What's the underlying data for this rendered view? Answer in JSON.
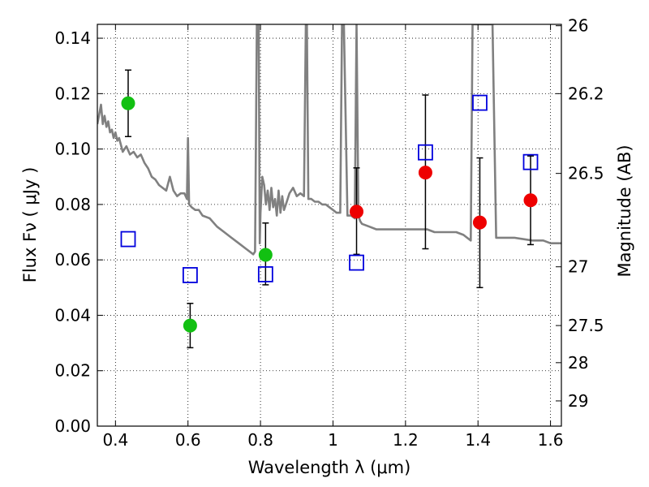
{
  "chart_data": {
    "type": "scatter",
    "xlabel": "Wavelength  λ (μm)",
    "ylabel": "Flux  Fν  ( μJy )",
    "ylabel_right": "Magnitude (AB)",
    "xlim": [
      0.35,
      1.63
    ],
    "ylim": [
      0.0,
      0.145
    ],
    "grid": true,
    "x_ticks": [
      {
        "value": 0.4,
        "label": "0.4"
      },
      {
        "value": 0.6,
        "label": "0.6"
      },
      {
        "value": 0.8,
        "label": "0.8"
      },
      {
        "value": 1.0,
        "label": "1"
      },
      {
        "value": 1.2,
        "label": "1.2"
      },
      {
        "value": 1.4,
        "label": "1.4"
      },
      {
        "value": 1.6,
        "label": "1.6"
      }
    ],
    "y_ticks": [
      {
        "value": 0.0,
        "label": "0.00"
      },
      {
        "value": 0.02,
        "label": "0.02"
      },
      {
        "value": 0.04,
        "label": "0.04"
      },
      {
        "value": 0.06,
        "label": "0.06"
      },
      {
        "value": 0.08,
        "label": "0.08"
      },
      {
        "value": 0.1,
        "label": "0.10"
      },
      {
        "value": 0.12,
        "label": "0.12"
      },
      {
        "value": 0.14,
        "label": "0.14"
      }
    ],
    "mag_ticks": [
      {
        "flux": 0.1445,
        "label": "26"
      },
      {
        "flux": 0.12,
        "label": "26.2"
      },
      {
        "flux": 0.0912,
        "label": "26.5"
      },
      {
        "flux": 0.0575,
        "label": "27"
      },
      {
        "flux": 0.0363,
        "label": "27.5"
      },
      {
        "flux": 0.0229,
        "label": "28"
      },
      {
        "flux": 0.0091,
        "label": "29"
      }
    ],
    "series": [
      {
        "marker": "circle",
        "color": "#12c012",
        "points": [
          {
            "x": 0.435,
            "y": 0.1165,
            "err_lo": 0.1045,
            "err_hi": 0.1285
          },
          {
            "x": 0.606,
            "y": 0.0363,
            "err_lo": 0.0283,
            "err_hi": 0.0443
          },
          {
            "x": 0.814,
            "y": 0.0618,
            "err_lo": 0.051,
            "err_hi": 0.0733
          }
        ]
      },
      {
        "marker": "circle",
        "color": "#ee0000",
        "points": [
          {
            "x": 1.065,
            "y": 0.0774,
            "err_lo": 0.062,
            "err_hi": 0.0932
          },
          {
            "x": 1.255,
            "y": 0.0915,
            "err_lo": 0.064,
            "err_hi": 0.1195
          },
          {
            "x": 1.405,
            "y": 0.0735,
            "err_lo": 0.05,
            "err_hi": 0.0968
          },
          {
            "x": 1.545,
            "y": 0.0815,
            "err_lo": 0.0655,
            "err_hi": 0.0975
          }
        ]
      },
      {
        "marker": "square",
        "color": "#0000dd",
        "points": [
          {
            "x": 0.435,
            "y": 0.0675
          },
          {
            "x": 0.606,
            "y": 0.0545
          },
          {
            "x": 0.814,
            "y": 0.0548
          },
          {
            "x": 1.065,
            "y": 0.059
          },
          {
            "x": 1.255,
            "y": 0.0988
          },
          {
            "x": 1.405,
            "y": 0.1167
          },
          {
            "x": 1.545,
            "y": 0.0953
          }
        ]
      }
    ],
    "model_spectrum": {
      "color": "#808080",
      "x": [
        0.35,
        0.36,
        0.365,
        0.37,
        0.375,
        0.38,
        0.385,
        0.39,
        0.395,
        0.4,
        0.405,
        0.41,
        0.42,
        0.43,
        0.44,
        0.45,
        0.46,
        0.47,
        0.48,
        0.49,
        0.5,
        0.51,
        0.52,
        0.53,
        0.54,
        0.55,
        0.56,
        0.57,
        0.58,
        0.59,
        0.597,
        0.6,
        0.603,
        0.61,
        0.62,
        0.63,
        0.64,
        0.66,
        0.68,
        0.7,
        0.72,
        0.74,
        0.76,
        0.78,
        0.785,
        0.79,
        0.795,
        0.798,
        0.8,
        0.805,
        0.81,
        0.815,
        0.82,
        0.825,
        0.83,
        0.835,
        0.84,
        0.845,
        0.85,
        0.855,
        0.86,
        0.865,
        0.87,
        0.875,
        0.88,
        0.89,
        0.9,
        0.91,
        0.92,
        0.925,
        0.928,
        0.932,
        0.94,
        0.95,
        0.96,
        0.97,
        0.98,
        0.99,
        1.0,
        1.01,
        1.02,
        1.025,
        1.03,
        1.04,
        1.05,
        1.06,
        1.065,
        1.07,
        1.075,
        1.08,
        1.1,
        1.12,
        1.14,
        1.16,
        1.18,
        1.2,
        1.22,
        1.24,
        1.26,
        1.28,
        1.3,
        1.32,
        1.34,
        1.36,
        1.37,
        1.38,
        1.385,
        1.39,
        1.4,
        1.41,
        1.42,
        1.43,
        1.44,
        1.45,
        1.5,
        1.55,
        1.58,
        1.6,
        1.63
      ],
      "y": [
        0.109,
        0.116,
        0.109,
        0.112,
        0.108,
        0.11,
        0.106,
        0.107,
        0.104,
        0.106,
        0.103,
        0.104,
        0.099,
        0.101,
        0.098,
        0.099,
        0.097,
        0.098,
        0.095,
        0.093,
        0.09,
        0.089,
        0.087,
        0.086,
        0.085,
        0.09,
        0.085,
        0.083,
        0.084,
        0.084,
        0.082,
        0.104,
        0.08,
        0.079,
        0.078,
        0.078,
        0.076,
        0.075,
        0.072,
        0.07,
        0.068,
        0.066,
        0.064,
        0.062,
        0.063,
        0.145,
        0.145,
        0.066,
        0.077,
        0.09,
        0.087,
        0.08,
        0.085,
        0.078,
        0.086,
        0.079,
        0.082,
        0.076,
        0.085,
        0.077,
        0.083,
        0.078,
        0.08,
        0.082,
        0.084,
        0.086,
        0.083,
        0.084,
        0.083,
        0.145,
        0.145,
        0.082,
        0.082,
        0.081,
        0.081,
        0.08,
        0.08,
        0.079,
        0.078,
        0.077,
        0.077,
        0.145,
        0.145,
        0.076,
        0.076,
        0.075,
        0.145,
        0.076,
        0.074,
        0.073,
        0.072,
        0.071,
        0.071,
        0.071,
        0.071,
        0.071,
        0.071,
        0.071,
        0.071,
        0.07,
        0.07,
        0.07,
        0.07,
        0.069,
        0.068,
        0.067,
        0.145,
        0.145,
        0.145,
        0.145,
        0.145,
        0.145,
        0.145,
        0.068,
        0.068,
        0.067,
        0.067,
        0.066,
        0.066
      ]
    }
  }
}
